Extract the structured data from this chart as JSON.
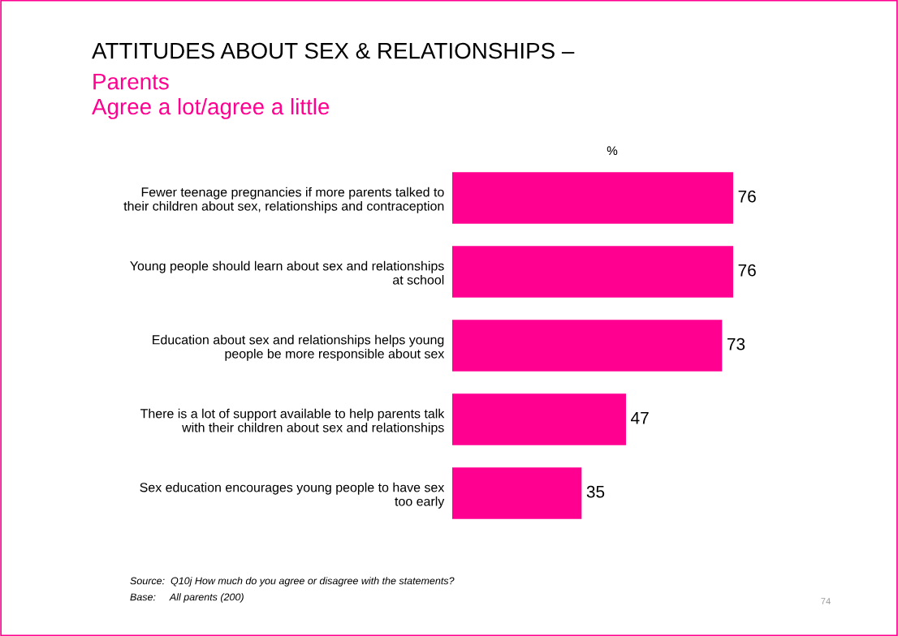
{
  "chart_data": {
    "type": "bar",
    "orientation": "horizontal",
    "title": "ATTITUDES ABOUT SEX & RELATIONSHIPS –",
    "subtitle": "Parents\nAgree a lot/agree a little",
    "categories": [
      "Fewer teenage pregnancies if more parents talked to\ntheir children about sex, relationships and contraception",
      "Young people should learn about sex and relationships\nat school",
      "Education about sex and relationships helps young\npeople be more responsible about sex",
      "There is a lot of support available to help parents talk\nwith their children about sex and relationships",
      "Sex education encourages young people to have sex\ntoo early"
    ],
    "values": [
      76,
      76,
      73,
      47,
      35
    ],
    "color": "#ff0090",
    "data_labels": true,
    "tick_labels": "y",
    "grid": false,
    "legend": false,
    "annotations": [
      "%",
      "Source:  Q10j How much do you agree or disagree with the statements?",
      "Base:     All parents (200)",
      "74"
    ]
  }
}
